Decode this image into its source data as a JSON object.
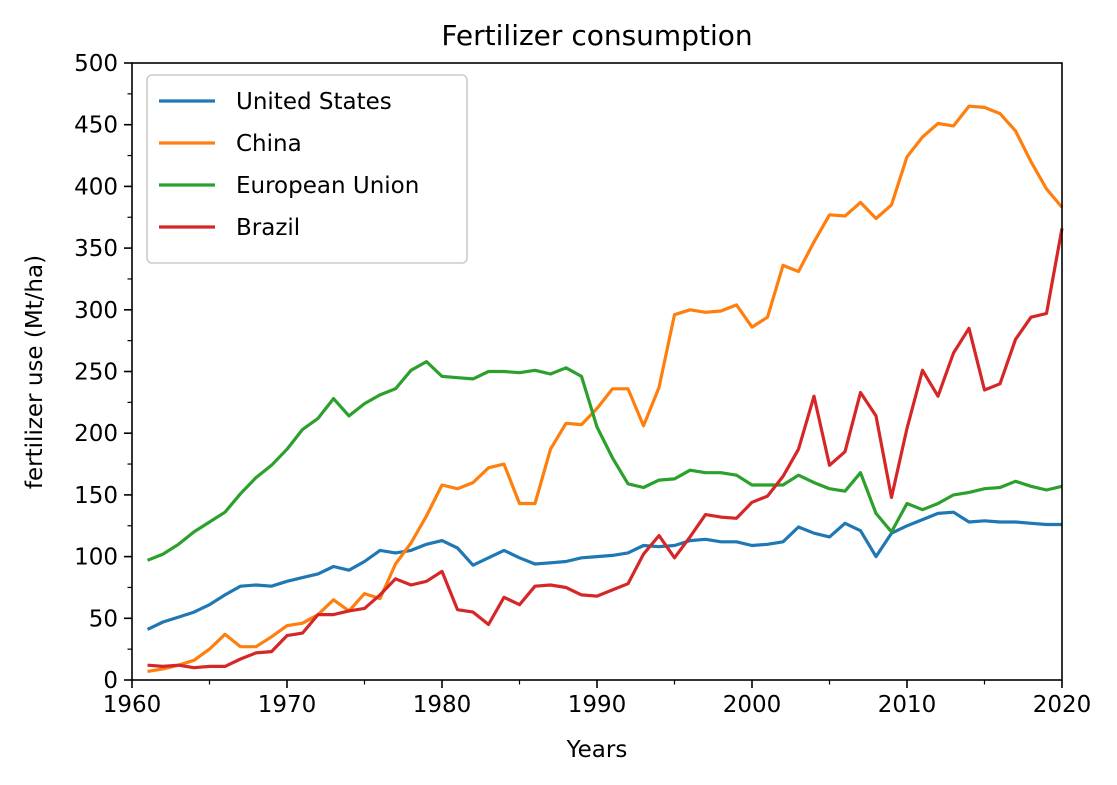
{
  "chart_data": {
    "type": "line",
    "title": "Fertilizer consumption",
    "xlabel": "Years",
    "ylabel": "fertilizer use (Mt/ha)",
    "xlim": [
      1960,
      2020
    ],
    "ylim": [
      0,
      500
    ],
    "x_ticks": [
      1960,
      1970,
      1980,
      1990,
      2000,
      2010,
      2020
    ],
    "y_ticks": [
      0,
      50,
      100,
      150,
      200,
      250,
      300,
      350,
      400,
      450,
      500
    ],
    "grid": false,
    "legend_position": "top-left",
    "x": [
      1961,
      1962,
      1963,
      1964,
      1965,
      1966,
      1967,
      1968,
      1969,
      1970,
      1971,
      1972,
      1973,
      1974,
      1975,
      1976,
      1977,
      1978,
      1979,
      1980,
      1981,
      1982,
      1983,
      1984,
      1985,
      1986,
      1987,
      1988,
      1989,
      1990,
      1991,
      1992,
      1993,
      1994,
      1995,
      1996,
      1997,
      1998,
      1999,
      2000,
      2001,
      2002,
      2003,
      2004,
      2005,
      2006,
      2007,
      2008,
      2009,
      2010,
      2011,
      2012,
      2013,
      2014,
      2015,
      2016,
      2017,
      2018,
      2019,
      2020
    ],
    "series": [
      {
        "name": "United States",
        "color": "#1f77b4",
        "values": [
          41,
          47,
          51,
          55,
          61,
          69,
          76,
          77,
          76,
          80,
          83,
          86,
          92,
          89,
          96,
          105,
          103,
          105,
          110,
          113,
          107,
          93,
          99,
          105,
          99,
          94,
          95,
          96,
          99,
          100,
          101,
          103,
          109,
          108,
          109,
          113,
          114,
          112,
          112,
          109,
          110,
          112,
          124,
          119,
          116,
          127,
          121,
          100,
          119,
          125,
          130,
          135,
          136,
          128,
          129,
          128,
          128,
          127,
          126,
          126
        ]
      },
      {
        "name": "China",
        "color": "#ff7f0e",
        "values": [
          7,
          9,
          12,
          16,
          25,
          37,
          27,
          27,
          35,
          44,
          46,
          53,
          65,
          56,
          70,
          66,
          94,
          111,
          133,
          158,
          155,
          160,
          172,
          175,
          143,
          143,
          187,
          208,
          207,
          220,
          236,
          236,
          206,
          237,
          296,
          300,
          298,
          299,
          304,
          286,
          294,
          336,
          331,
          355,
          377,
          376,
          387,
          374,
          385,
          424,
          440,
          451,
          449,
          465,
          464,
          459,
          445,
          420,
          398,
          383
        ]
      },
      {
        "name": "European Union",
        "color": "#2ca02c",
        "values": [
          97,
          102,
          110,
          120,
          128,
          136,
          151,
          164,
          174,
          187,
          203,
          212,
          228,
          214,
          224,
          231,
          236,
          251,
          258,
          246,
          245,
          244,
          250,
          250,
          249,
          251,
          248,
          253,
          246,
          205,
          180,
          159,
          156,
          162,
          163,
          170,
          168,
          168,
          166,
          158,
          158,
          158,
          166,
          160,
          155,
          153,
          168,
          135,
          120,
          143,
          138,
          143,
          150,
          152,
          155,
          156,
          161,
          157,
          154,
          157
        ]
      },
      {
        "name": "Brazil",
        "color": "#d62728",
        "values": [
          12,
          11,
          12,
          10,
          11,
          11,
          17,
          22,
          23,
          36,
          38,
          53,
          53,
          56,
          58,
          69,
          82,
          77,
          80,
          88,
          57,
          55,
          45,
          67,
          61,
          76,
          77,
          75,
          69,
          68,
          73,
          78,
          102,
          117,
          99,
          116,
          134,
          132,
          131,
          144,
          149,
          165,
          187,
          230,
          174,
          185,
          233,
          214,
          148,
          204,
          251,
          230,
          265,
          285,
          235,
          240,
          276,
          294,
          297,
          366
        ]
      }
    ]
  }
}
